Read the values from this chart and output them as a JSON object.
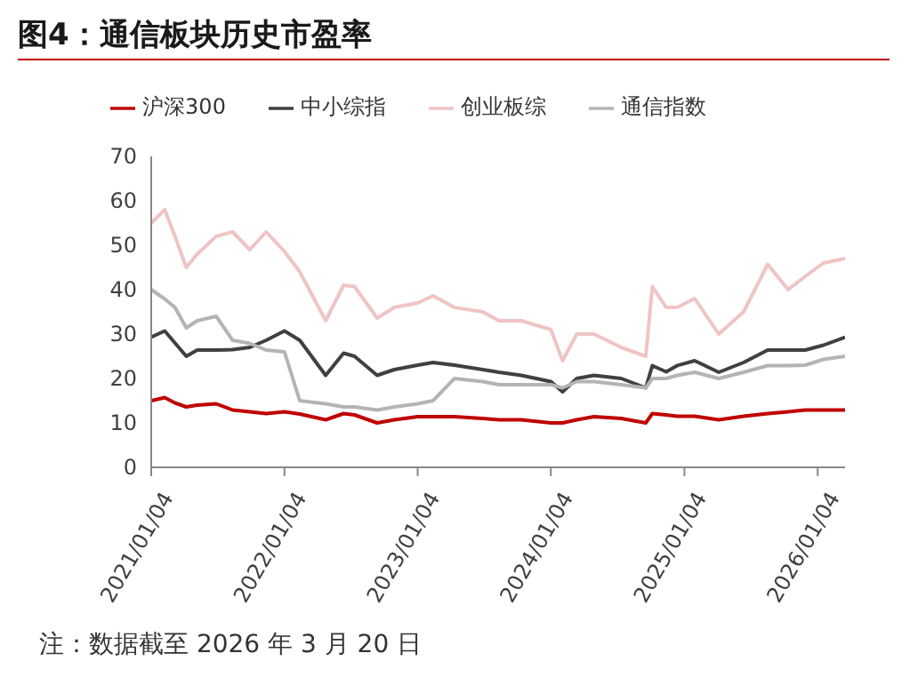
{
  "chart_data": {
    "type": "line",
    "title": "图4：通信板块历史市盈率",
    "annotations": [
      "注：数据截至 2026 年 3 月 20 日"
    ],
    "x": [
      "2021-01-04",
      "2021-02-10",
      "2021-03-10",
      "2021-04-10",
      "2021-05-10",
      "2021-07-01",
      "2021-08-15",
      "2021-10-01",
      "2021-11-15",
      "2022-01-04",
      "2022-02-15",
      "2022-04-27",
      "2022-06-15",
      "2022-07-15",
      "2022-09-15",
      "2022-11-01",
      "2023-01-04",
      "2023-02-15",
      "2023-04-15",
      "2023-07-01",
      "2023-08-15",
      "2023-10-15",
      "2024-01-04",
      "2024-02-05",
      "2024-03-15",
      "2024-05-01",
      "2024-07-15",
      "2024-09-20",
      "2024-10-08",
      "2024-11-15",
      "2024-12-15",
      "2025-02-01",
      "2025-04-08",
      "2025-06-15",
      "2025-08-20",
      "2025-10-15",
      "2025-12-01",
      "2026-01-20",
      "2026-03-20"
    ],
    "series": [
      {
        "name": "沪深300",
        "color": "#c00000",
        "values": [
          15,
          15.7,
          14.5,
          13.6,
          14,
          14.3,
          12.9,
          12.5,
          12.1,
          12.5,
          12,
          10.7,
          12.1,
          11.8,
          10,
          10.7,
          11.4,
          11.4,
          11.4,
          11,
          10.7,
          10.7,
          10,
          10,
          10.7,
          11.4,
          11,
          10,
          12.1,
          11.8,
          11.5,
          11.5,
          10.7,
          11.5,
          12.1,
          12.5,
          12.9,
          12.9,
          12.9
        ]
      },
      {
        "name": "中小综指",
        "color": "#404040",
        "values": [
          29.3,
          30.7,
          28,
          25,
          26.4,
          26.4,
          26.5,
          27,
          28.6,
          30.7,
          28.6,
          20.7,
          25.7,
          25,
          20.7,
          22,
          23,
          23.6,
          23,
          22,
          21.4,
          20.7,
          19.3,
          17,
          20,
          20.7,
          20,
          17.9,
          22.9,
          21.5,
          22.9,
          24,
          21.4,
          23.6,
          26.4,
          26.4,
          26.4,
          27.5,
          29.3
        ]
      },
      {
        "name": "创业板综",
        "color": "#f0c4c4",
        "values": [
          55,
          58,
          52,
          45,
          48,
          52,
          53,
          49,
          53,
          48.6,
          44,
          33,
          41,
          40.7,
          33.6,
          36,
          37,
          38.6,
          36,
          35,
          33,
          33,
          31,
          24,
          30,
          30,
          27,
          25,
          40.7,
          36,
          36,
          38,
          30,
          35,
          45.7,
          40,
          43,
          46,
          47
        ]
      },
      {
        "name": "通信指数",
        "color": "#b4b4b4",
        "values": [
          40,
          37.9,
          36,
          31.4,
          33,
          34,
          28.6,
          27.9,
          26.4,
          26,
          15,
          14.3,
          13.6,
          13.6,
          12.9,
          13.6,
          14.3,
          15,
          20,
          19.3,
          18.6,
          18.6,
          18.6,
          17.9,
          19.3,
          19.3,
          18.6,
          17.9,
          20,
          20,
          20.7,
          21.4,
          20,
          21.4,
          22.9,
          22.9,
          23,
          24.3,
          25
        ]
      }
    ],
    "xlim": [
      "2021-01-04",
      "2026-03-20"
    ],
    "xticks": [
      {
        "value": "2021-01-04",
        "label": "2021/01/04"
      },
      {
        "value": "2022-01-04",
        "label": "2022/01/04"
      },
      {
        "value": "2023-01-04",
        "label": "2023/01/04"
      },
      {
        "value": "2024-01-04",
        "label": "2024/01/04"
      },
      {
        "value": "2025-01-04",
        "label": "2025/01/04"
      },
      {
        "value": "2026-01-04",
        "label": "2026/01/04"
      }
    ],
    "ylim": [
      0,
      70
    ],
    "yticks": [
      0,
      10,
      20,
      30,
      40,
      50,
      60,
      70
    ],
    "grid": false,
    "legend": "top",
    "line_style": "solid",
    "marker": "none"
  }
}
